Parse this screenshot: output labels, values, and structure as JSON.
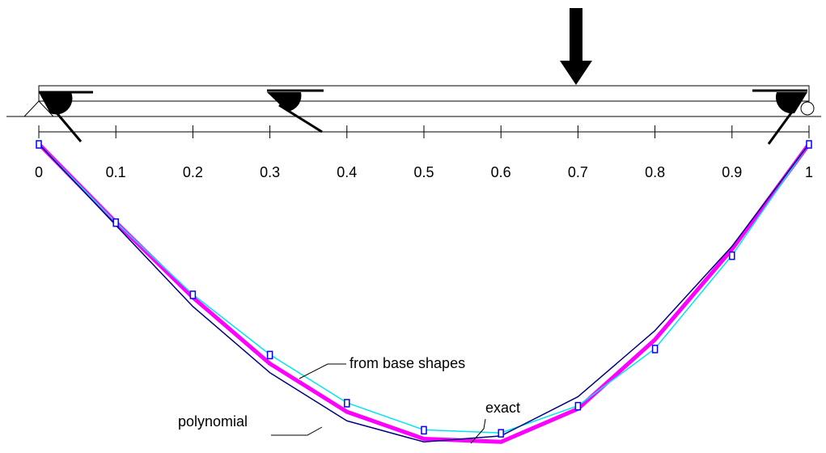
{
  "chart_data": {
    "type": "line",
    "x": [
      0,
      0.1,
      0.2,
      0.3,
      0.4,
      0.5,
      0.6,
      0.7,
      0.8,
      0.9,
      1
    ],
    "xlim": [
      0,
      1
    ],
    "xticks": [
      0,
      0.1,
      0.2,
      0.3,
      0.4,
      0.5,
      0.6,
      0.7,
      0.8,
      0.9,
      1
    ],
    "ylim": [
      -1,
      0
    ],
    "series": [
      {
        "name": "exact",
        "color": "#ff00ff",
        "line_width": 5,
        "markers": false,
        "values": [
          0,
          -0.26,
          -0.51,
          -0.73,
          -0.89,
          -0.98,
          -0.99,
          -0.88,
          -0.65,
          -0.35,
          0
        ]
      },
      {
        "name": "from base shapes",
        "color": "#00e5ee",
        "line_width": 1.5,
        "markers": true,
        "values": [
          0,
          -0.26,
          -0.5,
          -0.7,
          -0.86,
          -0.95,
          -0.96,
          -0.87,
          -0.68,
          -0.37,
          0
        ]
      },
      {
        "name": "polynomial",
        "color": "#000080",
        "line_width": 1.5,
        "markers": false,
        "values": [
          0,
          -0.27,
          -0.54,
          -0.76,
          -0.92,
          -0.99,
          -0.97,
          -0.84,
          -0.62,
          -0.34,
          0
        ]
      }
    ],
    "marker_color": "#0000ff"
  }
}
